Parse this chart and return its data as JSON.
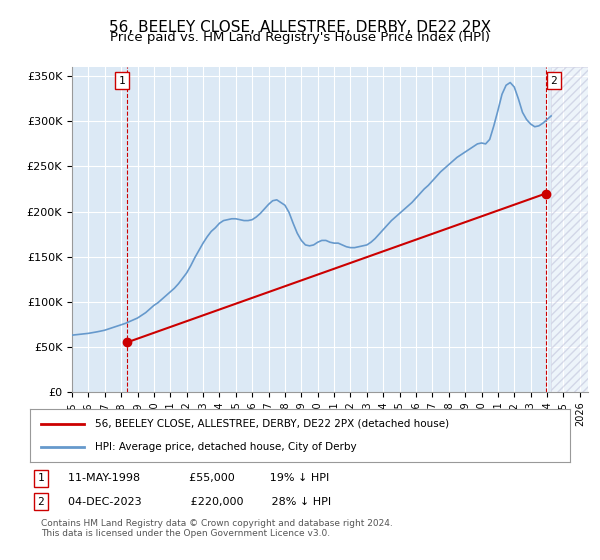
{
  "title": "56, BEELEY CLOSE, ALLESTREE, DERBY, DE22 2PX",
  "subtitle": "Price paid vs. HM Land Registry's House Price Index (HPI)",
  "title_fontsize": 11,
  "subtitle_fontsize": 9.5,
  "background_color": "#ffffff",
  "plot_bg_color": "#dce9f5",
  "grid_color": "#ffffff",
  "ylim": [
    0,
    360000
  ],
  "xlim_start": 1995.0,
  "xlim_end": 2026.5,
  "yticks": [
    0,
    50000,
    100000,
    150000,
    200000,
    250000,
    300000,
    350000
  ],
  "ytick_labels": [
    "£0",
    "£50K",
    "£100K",
    "£150K",
    "£200K",
    "£250K",
    "£300K",
    "£350K"
  ],
  "xticks": [
    1995,
    1996,
    1997,
    1998,
    1999,
    2000,
    2001,
    2002,
    2003,
    2004,
    2005,
    2006,
    2007,
    2008,
    2009,
    2010,
    2011,
    2012,
    2013,
    2014,
    2015,
    2016,
    2017,
    2018,
    2019,
    2020,
    2021,
    2022,
    2023,
    2024,
    2025,
    2026
  ],
  "hpi_color": "#6699cc",
  "price_color": "#cc0000",
  "marker_color": "#cc0000",
  "vline_color": "#cc0000",
  "sale1_x": 1998.36,
  "sale1_y": 55000,
  "sale2_x": 2023.92,
  "sale2_y": 220000,
  "legend_label_price": "56, BEELEY CLOSE, ALLESTREE, DERBY, DE22 2PX (detached house)",
  "legend_label_hpi": "HPI: Average price, detached house, City of Derby",
  "annotation1_label": "1",
  "annotation2_label": "2",
  "footnote1": "1   11-MAY-1998              £55,000          19% ↓ HPI",
  "footnote2": "2   04-DEC-2023              £220,000        28% ↓ HPI",
  "copyright": "Contains HM Land Registry data © Crown copyright and database right 2024.\nThis data is licensed under the Open Government Licence v3.0.",
  "hpi_data_x": [
    1995.0,
    1995.25,
    1995.5,
    1995.75,
    1996.0,
    1996.25,
    1996.5,
    1996.75,
    1997.0,
    1997.25,
    1997.5,
    1997.75,
    1998.0,
    1998.25,
    1998.5,
    1998.75,
    1999.0,
    1999.25,
    1999.5,
    1999.75,
    2000.0,
    2000.25,
    2000.5,
    2000.75,
    2001.0,
    2001.25,
    2001.5,
    2001.75,
    2002.0,
    2002.25,
    2002.5,
    2002.75,
    2003.0,
    2003.25,
    2003.5,
    2003.75,
    2004.0,
    2004.25,
    2004.5,
    2004.75,
    2005.0,
    2005.25,
    2005.5,
    2005.75,
    2006.0,
    2006.25,
    2006.5,
    2006.75,
    2007.0,
    2007.25,
    2007.5,
    2007.75,
    2008.0,
    2008.25,
    2008.5,
    2008.75,
    2009.0,
    2009.25,
    2009.5,
    2009.75,
    2010.0,
    2010.25,
    2010.5,
    2010.75,
    2011.0,
    2011.25,
    2011.5,
    2011.75,
    2012.0,
    2012.25,
    2012.5,
    2012.75,
    2013.0,
    2013.25,
    2013.5,
    2013.75,
    2014.0,
    2014.25,
    2014.5,
    2014.75,
    2015.0,
    2015.25,
    2015.5,
    2015.75,
    2016.0,
    2016.25,
    2016.5,
    2016.75,
    2017.0,
    2017.25,
    2017.5,
    2017.75,
    2018.0,
    2018.25,
    2018.5,
    2018.75,
    2019.0,
    2019.25,
    2019.5,
    2019.75,
    2020.0,
    2020.25,
    2020.5,
    2020.75,
    2021.0,
    2021.25,
    2021.5,
    2021.75,
    2022.0,
    2022.25,
    2022.5,
    2022.75,
    2023.0,
    2023.25,
    2023.5,
    2023.75,
    2024.0,
    2024.25
  ],
  "hpi_data_y": [
    63000,
    63500,
    64000,
    64500,
    65000,
    65800,
    66600,
    67500,
    68500,
    70000,
    71500,
    73000,
    74500,
    76000,
    78000,
    80000,
    82000,
    85000,
    88000,
    92000,
    96000,
    99000,
    103000,
    107000,
    111000,
    115000,
    120000,
    126000,
    132000,
    140000,
    149000,
    157000,
    165000,
    172000,
    178000,
    182000,
    187000,
    190000,
    191000,
    192000,
    192000,
    191000,
    190000,
    190000,
    191000,
    194000,
    198000,
    203000,
    208000,
    212000,
    213000,
    210000,
    207000,
    199000,
    187000,
    176000,
    168000,
    163000,
    162000,
    163000,
    166000,
    168000,
    168000,
    166000,
    165000,
    165000,
    163000,
    161000,
    160000,
    160000,
    161000,
    162000,
    163000,
    166000,
    170000,
    175000,
    180000,
    185000,
    190000,
    194000,
    198000,
    202000,
    206000,
    210000,
    215000,
    220000,
    225000,
    229000,
    234000,
    239000,
    244000,
    248000,
    252000,
    256000,
    260000,
    263000,
    266000,
    269000,
    272000,
    275000,
    276000,
    275000,
    280000,
    295000,
    312000,
    330000,
    340000,
    343000,
    338000,
    325000,
    310000,
    302000,
    297000,
    294000,
    295000,
    298000,
    302000,
    306000
  ],
  "price_data_x": [
    1998.36,
    2023.92
  ],
  "price_data_y": [
    55000,
    220000
  ],
  "hatch_start": 2024.25,
  "hatch_end": 2026.5
}
